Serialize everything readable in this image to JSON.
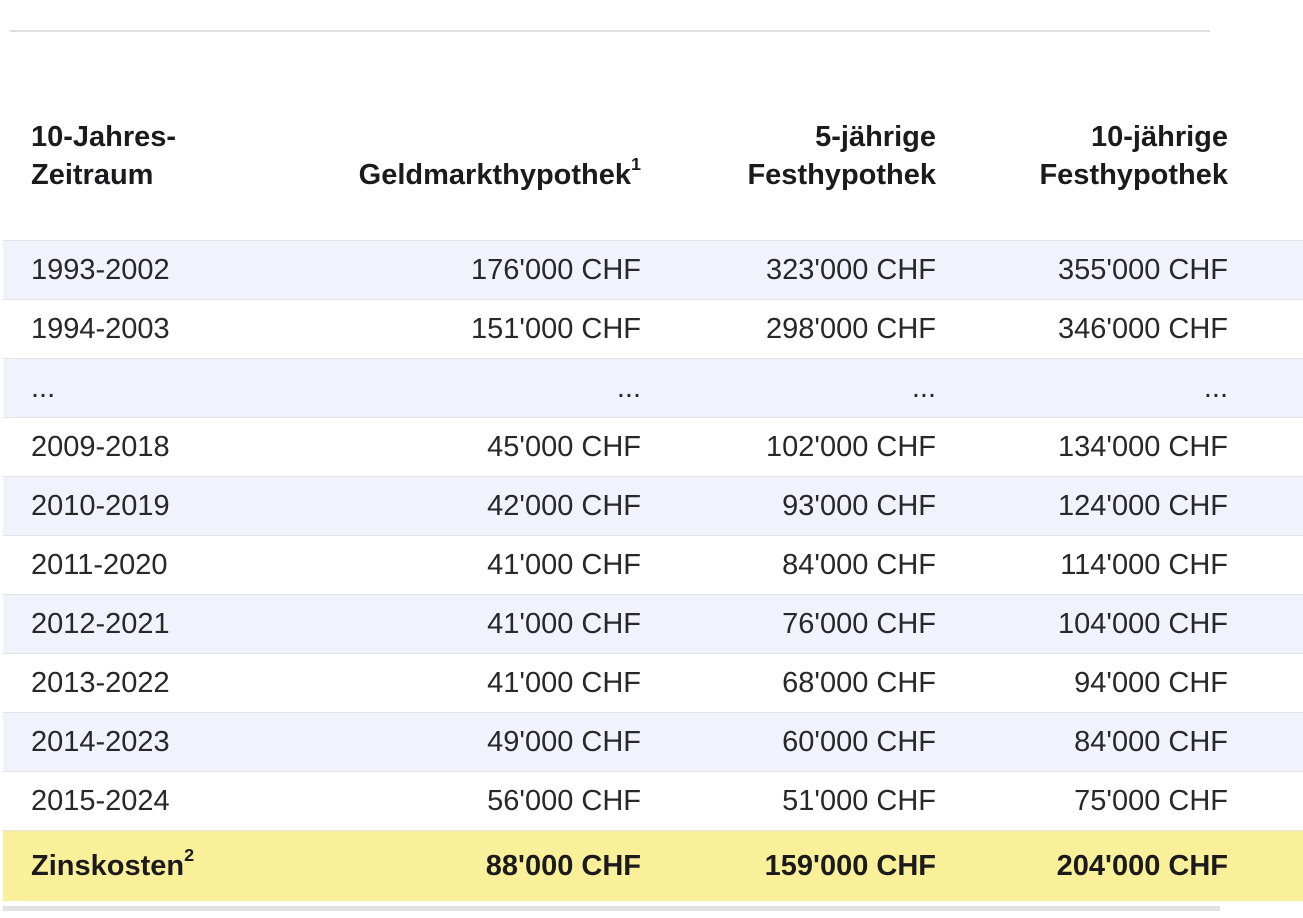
{
  "colors": {
    "row_alt_bg": "#f0f3fb",
    "highlight_bg": "#faf09a",
    "divider": "#dfdfdf",
    "row_border": "#e4e4e6",
    "scrollbar_track": "#e2e2e4",
    "text": "#28282a"
  },
  "table": {
    "columns": [
      {
        "id": "period",
        "lines": [
          "10-Jahres-",
          "Zeitraum"
        ],
        "sup": ""
      },
      {
        "id": "geldmarkt",
        "lines": [
          "Geldmarkthypothek"
        ],
        "sup": "1"
      },
      {
        "id": "fest5",
        "lines": [
          "5-jährige",
          "Festhypothek"
        ],
        "sup": ""
      },
      {
        "id": "fest10",
        "lines": [
          "10-jährige",
          "Festhypothek"
        ],
        "sup": ""
      }
    ],
    "rows": [
      {
        "period": "1993-2002",
        "geldmarkt": "176'000 CHF",
        "fest5": "323'000 CHF",
        "fest10": "355'000 CHF"
      },
      {
        "period": "1994-2003",
        "geldmarkt": "151'000 CHF",
        "fest5": "298'000 CHF",
        "fest10": "346'000 CHF"
      },
      {
        "period": "...",
        "geldmarkt": "...",
        "fest5": "...",
        "fest10": "..."
      },
      {
        "period": "2009-2018",
        "geldmarkt": "45'000 CHF",
        "fest5": "102'000 CHF",
        "fest10": "134'000 CHF"
      },
      {
        "period": "2010-2019",
        "geldmarkt": "42'000 CHF",
        "fest5": "93'000 CHF",
        "fest10": "124'000 CHF"
      },
      {
        "period": "2011-2020",
        "geldmarkt": "41'000 CHF",
        "fest5": "84'000 CHF",
        "fest10": "114'000 CHF"
      },
      {
        "period": "2012-2021",
        "geldmarkt": "41'000 CHF",
        "fest5": "76'000 CHF",
        "fest10": "104'000 CHF"
      },
      {
        "period": "2013-2022",
        "geldmarkt": "41'000 CHF",
        "fest5": "68'000 CHF",
        "fest10": "94'000 CHF"
      },
      {
        "period": "2014-2023",
        "geldmarkt": "49'000 CHF",
        "fest5": "60'000 CHF",
        "fest10": "84'000 CHF"
      },
      {
        "period": "2015-2024",
        "geldmarkt": "56'000 CHF",
        "fest5": "51'000 CHF",
        "fest10": "75'000 CHF"
      }
    ],
    "footer": {
      "label": "Zinskosten",
      "sup": "2",
      "geldmarkt": "88'000 CHF",
      "fest5": "159'000 CHF",
      "fest10": "204'000 CHF"
    }
  }
}
